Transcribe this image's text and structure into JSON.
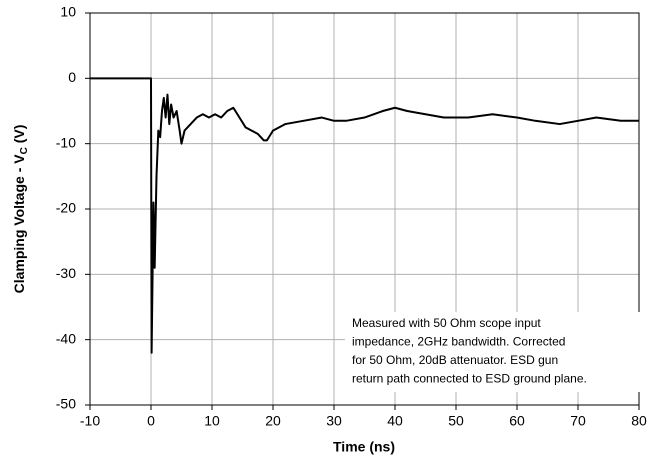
{
  "chart_data": {
    "type": "line",
    "xlabel": "Time (ns)",
    "ylabel": {
      "main": "Clamping Voltage - V",
      "sub": "C",
      "suffix": " (V)"
    },
    "annotation": [
      "Measured with 50 Ohm scope input",
      "impedance, 2GHz bandwidth. Corrected",
      "for 50 Ohm, 20dB attenuator. ESD gun",
      "return path connected to ESD ground plane."
    ],
    "x": [
      -10,
      -5,
      -1,
      0,
      0.1,
      0.4,
      0.6,
      0.9,
      1.2,
      1.5,
      1.8,
      2.1,
      2.4,
      2.7,
      3,
      3.3,
      3.7,
      4.2,
      4.7,
      5,
      5.5,
      6.5,
      7.5,
      8.5,
      9.5,
      10.5,
      11.5,
      12.5,
      13.5,
      14.5,
      15.5,
      16.5,
      17.5,
      18.5,
      19,
      20,
      22,
      25,
      28,
      30,
      32,
      35,
      38,
      40,
      42,
      45,
      48,
      52,
      56,
      60,
      63,
      67,
      70,
      73,
      77,
      80
    ],
    "values": [
      0,
      0,
      0,
      0,
      -42,
      -19,
      -29,
      -15,
      -8,
      -9,
      -5,
      -3,
      -6,
      -2.5,
      -7,
      -4,
      -6,
      -5,
      -8,
      -10,
      -8,
      -7,
      -6,
      -5.5,
      -6,
      -5.5,
      -6,
      -5,
      -4.5,
      -6,
      -7.5,
      -8,
      -8.5,
      -9.5,
      -9.5,
      -8,
      -7,
      -6.5,
      -6,
      -6.5,
      -6.5,
      -6,
      -5,
      -4.5,
      -5,
      -5.5,
      -6,
      -6,
      -5.5,
      -6,
      -6.5,
      -7,
      -6.5,
      -6,
      -6.5,
      -6.5
    ],
    "color": "#000000",
    "xlim": [
      -10,
      80
    ],
    "xticks": [
      -10,
      0,
      10,
      20,
      30,
      40,
      50,
      60,
      70,
      80
    ],
    "ylim": [
      -50,
      10
    ],
    "yticks": [
      -50,
      -40,
      -30,
      -20,
      -10,
      0,
      10
    ],
    "grid": true
  }
}
